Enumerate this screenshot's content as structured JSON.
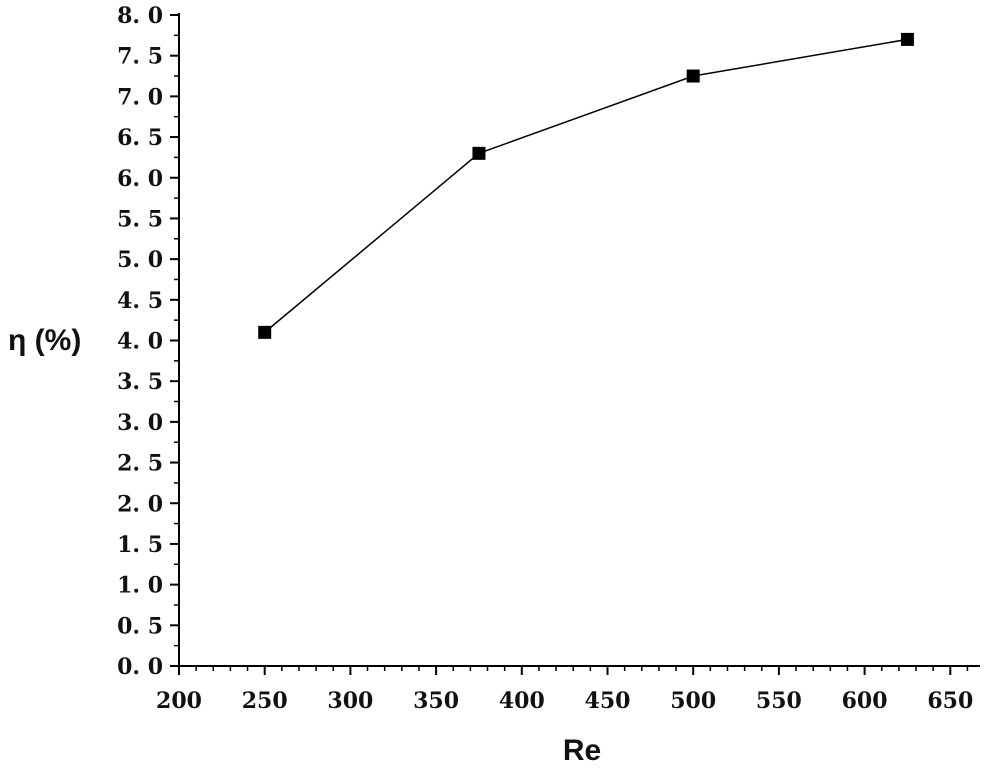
{
  "chart_data": {
    "type": "line",
    "title": "",
    "xlabel": "Re",
    "ylabel": "η (%)",
    "xlim": [
      200,
      650
    ],
    "ylim": [
      0,
      8
    ],
    "x_ticks": [
      "200",
      "250",
      "300",
      "350",
      "400",
      "450",
      "500",
      "550",
      "600",
      "650"
    ],
    "y_ticks": [
      "0. 0",
      "0. 5",
      "1. 0",
      "1. 5",
      "2. 0",
      "2. 5",
      "3. 0",
      "3. 5",
      "4. 0",
      "4. 5",
      "5. 0",
      "5. 5",
      "6. 0",
      "6. 5",
      "7. 0",
      "7. 5",
      "8. 0"
    ],
    "grid": false,
    "legend": "none",
    "series": [
      {
        "x": [
          250,
          375,
          500,
          625
        ],
        "y": [
          4.1,
          6.3,
          7.25,
          7.7
        ],
        "marker": "square",
        "color": "#000000"
      }
    ]
  }
}
